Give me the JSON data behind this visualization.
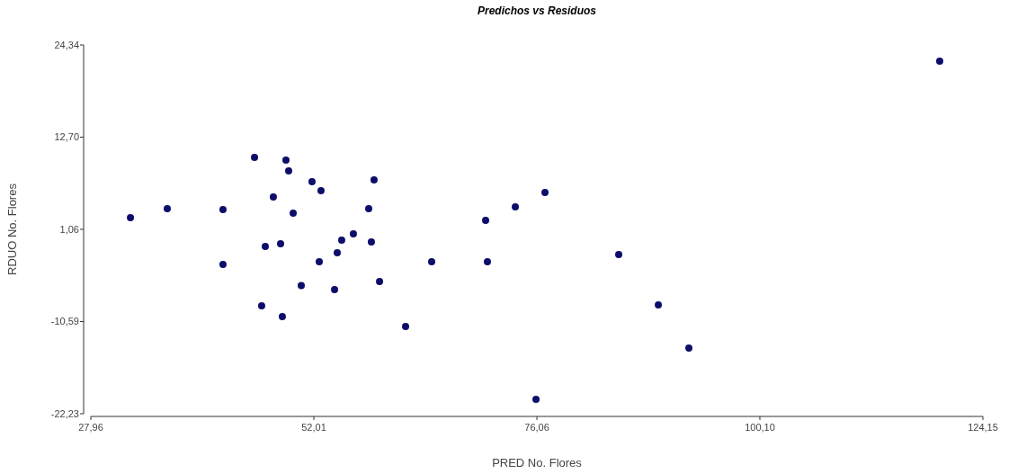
{
  "chart_data": {
    "type": "scatter",
    "title": "Predichos vs Residuos",
    "xlabel": "PRED No. Flores",
    "ylabel": "RDUO No. Flores",
    "xlim": [
      27.96,
      124.15
    ],
    "xticks": [
      {
        "value": 27.96,
        "label": "27,96"
      },
      {
        "value": 52.01,
        "label": "52,01"
      },
      {
        "value": 76.06,
        "label": "76,06"
      },
      {
        "value": 100.1,
        "label": "100,10"
      },
      {
        "value": 124.15,
        "label": "124,15"
      }
    ],
    "ylim": [
      -22.23,
      24.34
    ],
    "yticks": [
      {
        "value": -22.23,
        "label": "-22,23"
      },
      {
        "value": -10.59,
        "label": "-10,59"
      },
      {
        "value": 1.06,
        "label": "1,06"
      },
      {
        "value": 12.7,
        "label": "12,70"
      },
      {
        "value": 24.34,
        "label": "24,34"
      }
    ],
    "grid": false,
    "marker": "circle",
    "series": [
      {
        "color": "#0d0d6b",
        "x": [
          32.23,
          36.2,
          42.21,
          42.21,
          45.61,
          49.0,
          49.29,
          51.81,
          52.78,
          47.64,
          49.78,
          58.5,
          57.92,
          56.27,
          55.01,
          58.21,
          54.53,
          52.59,
          46.77,
          48.42,
          50.65,
          54.24,
          59.09,
          46.38,
          48.61,
          61.9,
          64.71,
          70.53,
          70.72,
          73.73,
          75.96,
          76.93,
          84.88,
          89.15,
          92.44,
          119.49
        ],
        "values": [
          2.53,
          3.67,
          3.56,
          -3.37,
          10.14,
          9.8,
          8.44,
          7.08,
          5.94,
          5.14,
          3.1,
          7.3,
          3.67,
          0.49,
          -0.31,
          -0.53,
          -1.9,
          -3.03,
          -1.1,
          -0.76,
          -6.03,
          -6.55,
          -5.53,
          -8.6,
          -9.96,
          -11.21,
          -3.03,
          2.19,
          -3.03,
          3.9,
          -20.41,
          5.71,
          -2.12,
          -8.48,
          -13.94,
          22.3
        ]
      }
    ]
  }
}
